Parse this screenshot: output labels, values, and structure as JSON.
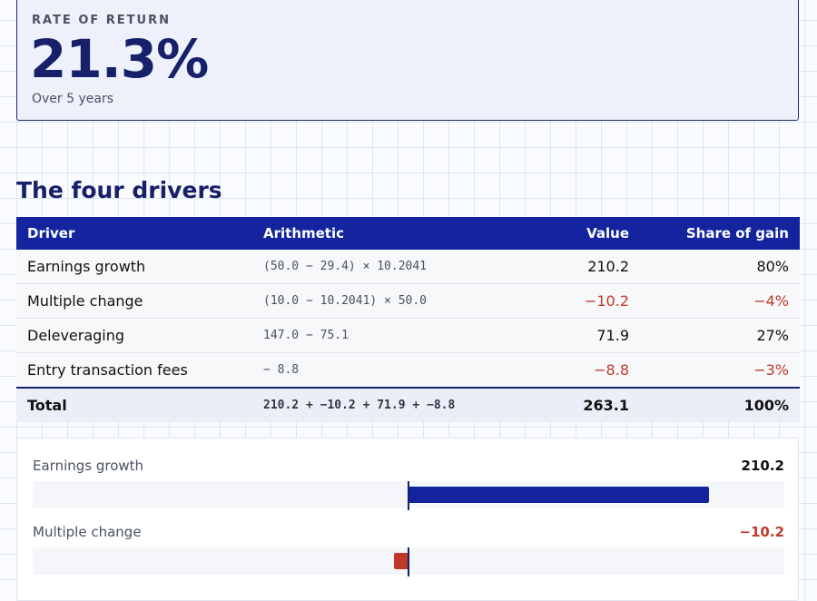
{
  "kpi": {
    "label": "RATE OF RETURN",
    "value": "21.3%",
    "subtitle": "Over 5 years"
  },
  "section": {
    "title": "The four drivers"
  },
  "table": {
    "headers": [
      "Driver",
      "Arithmetic",
      "Value",
      "Share of gain"
    ],
    "rows": [
      {
        "driver": "Earnings growth",
        "arithmetic": "(50.0 − 29.4) × 10.2041",
        "value": "210.2",
        "share": "80%"
      },
      {
        "driver": "Multiple change",
        "arithmetic": "(10.0 − 10.2041) × 50.0",
        "value": "−10.2",
        "share": "−4%"
      },
      {
        "driver": "Deleveraging",
        "arithmetic": "147.0 − 75.1",
        "value": "71.9",
        "share": "27%"
      },
      {
        "driver": "Entry transaction fees",
        "arithmetic": "− 8.8",
        "value": "−8.8",
        "share": "−3%"
      }
    ],
    "total": {
      "driver": "Total",
      "arithmetic": "210.2 + −10.2 + 71.9 + −8.8",
      "value": "263.1",
      "share": "100%"
    }
  },
  "bar_chart": {
    "scale_max": 263.1,
    "items": [
      {
        "name": "Earnings growth",
        "value": 210.2,
        "label": "210.2"
      },
      {
        "name": "Multiple change",
        "value": -10.2,
        "label": "−10.2"
      }
    ]
  },
  "colors": {
    "accent": "#13249e",
    "title": "#16216a",
    "negative": "#c0392b"
  }
}
